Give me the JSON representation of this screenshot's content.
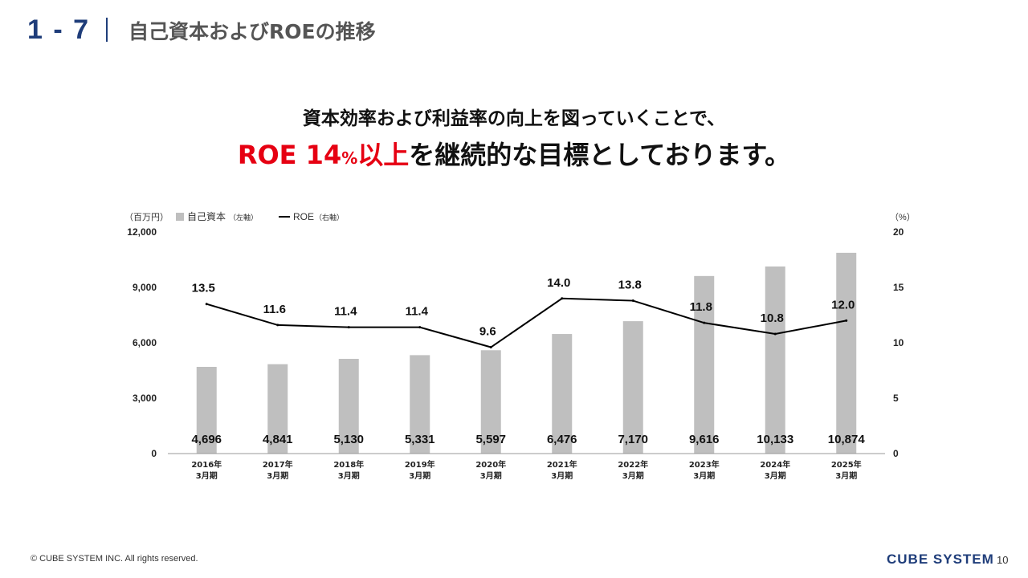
{
  "header": {
    "section_number": "1 - 7",
    "title": "自己資本およびROEの推移"
  },
  "headline": {
    "line1": "資本効率および利益率の向上を図っていくことで、",
    "line2_red_main": "ROE 14",
    "line2_red_pct": "%",
    "line2_red_tail": "以上",
    "line2_rest": "を継続的な目標としております。"
  },
  "chart_data": {
    "type": "bar",
    "left_axis_unit": "（百万円）",
    "right_axis_unit": "（%）",
    "legend": [
      {
        "name": "自己資本",
        "note": "（左軸）",
        "type": "bar",
        "color": "#bfbfbf"
      },
      {
        "name": "ROE",
        "note": "（右軸）",
        "type": "line",
        "color": "#000000"
      }
    ],
    "categories": [
      [
        "2016年",
        "3月期"
      ],
      [
        "2017年",
        "3月期"
      ],
      [
        "2018年",
        "3月期"
      ],
      [
        "2019年",
        "3月期"
      ],
      [
        "2020年",
        "3月期"
      ],
      [
        "2021年",
        "3月期"
      ],
      [
        "2022年",
        "3月期"
      ],
      [
        "2023年",
        "3月期"
      ],
      [
        "2024年",
        "3月期"
      ],
      [
        "2025年",
        "3月期"
      ]
    ],
    "series": [
      {
        "name": "自己資本",
        "axis": "left",
        "values": [
          4696,
          4841,
          5130,
          5331,
          5597,
          6476,
          7170,
          9616,
          10133,
          10874
        ],
        "labels": [
          "4,696",
          "4,841",
          "5,130",
          "5,331",
          "5,597",
          "6,476",
          "7,170",
          "9,616",
          "10,133",
          "10,874"
        ]
      },
      {
        "name": "ROE",
        "axis": "right",
        "values": [
          13.5,
          11.6,
          11.4,
          11.4,
          9.6,
          14.0,
          13.8,
          11.8,
          10.8,
          12.0
        ],
        "labels": [
          "13.5",
          "11.6",
          "11.4",
          "11.4",
          "9.6",
          "14.0",
          "13.8",
          "11.8",
          "10.8",
          "12.0"
        ]
      }
    ],
    "left_ylim": [
      0,
      12000
    ],
    "left_ticks": [
      "0",
      "3,000",
      "6,000",
      "9,000",
      "12,000"
    ],
    "right_ylim": [
      0,
      20
    ],
    "right_ticks": [
      "0",
      "5",
      "10",
      "15",
      "20"
    ],
    "grid": false,
    "legend_position": "top-left"
  },
  "footer": {
    "copyright": "© CUBE SYSTEM INC. All rights reserved.",
    "logo": "CUBE SYSTEM",
    "page_number": "10"
  },
  "colors": {
    "accent_blue": "#1f3d7a",
    "highlight_red": "#e60012",
    "bar_gray": "#bfbfbf"
  }
}
